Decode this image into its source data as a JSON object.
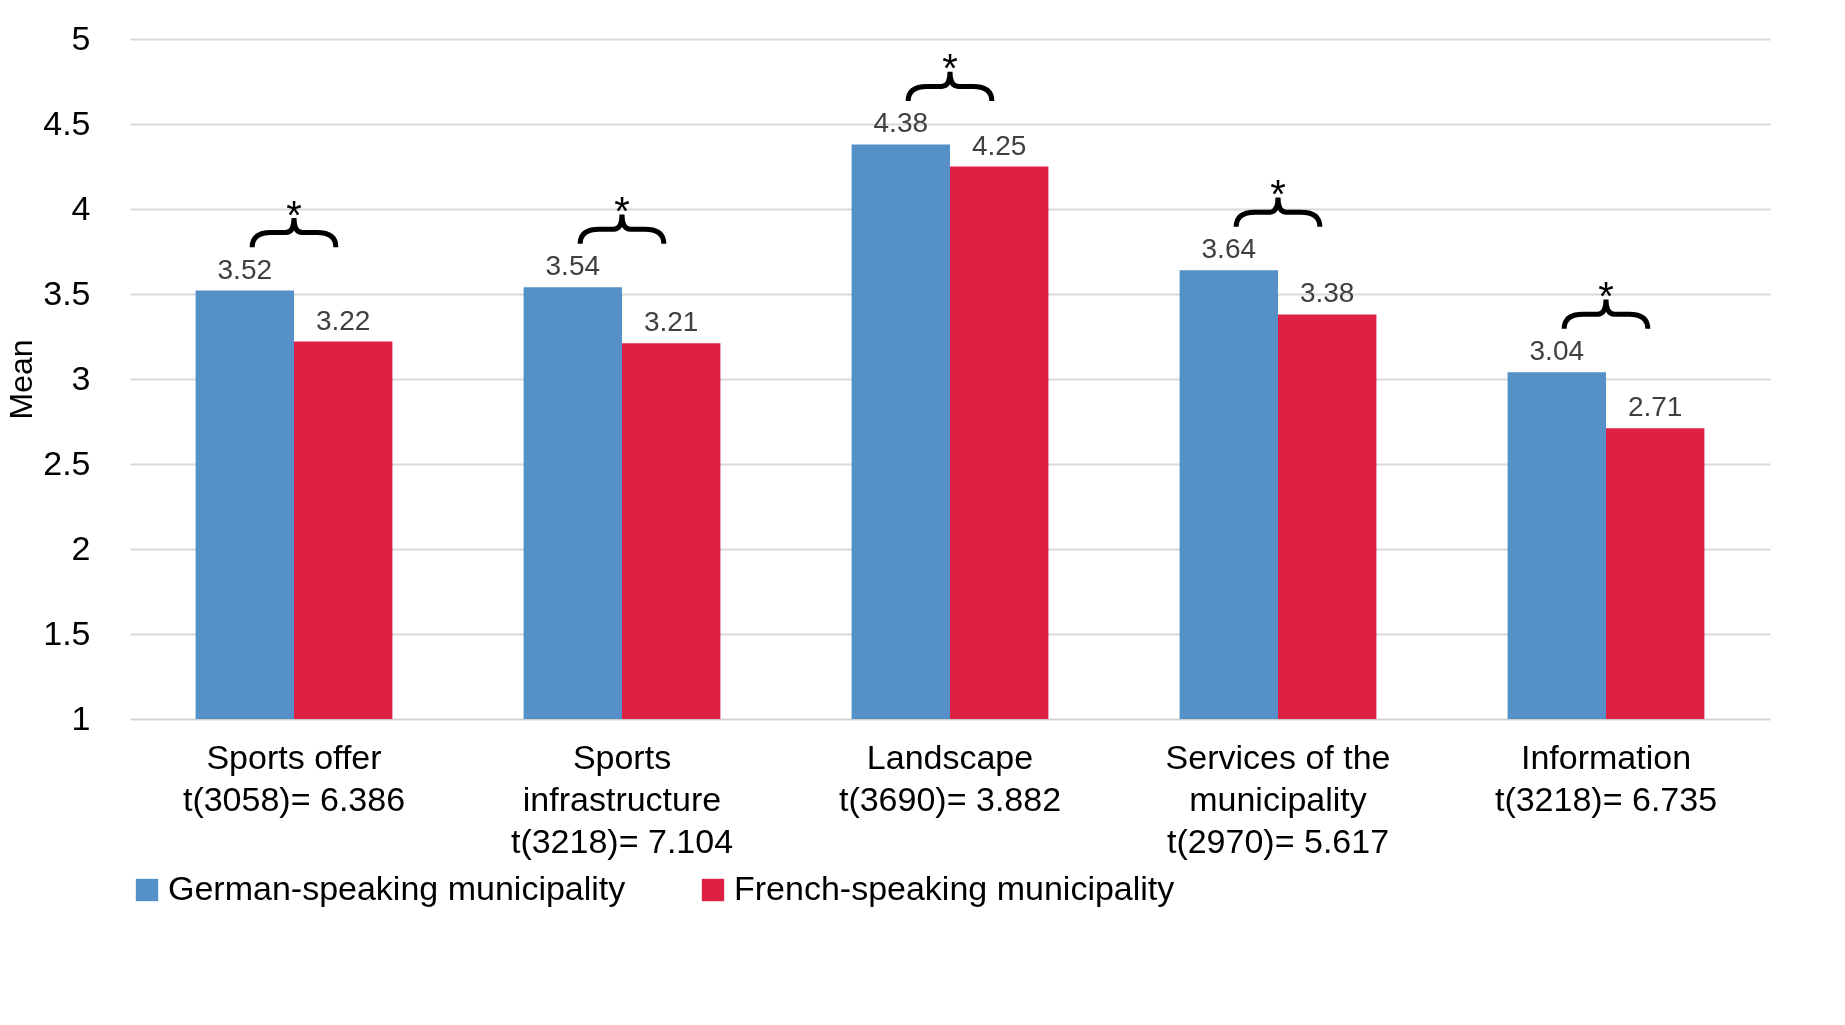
{
  "chart_data": {
    "type": "bar",
    "ylabel": "Mean",
    "categories": [
      "Sports offer\nt(3058)= 6.386",
      "Sports\ninfrastructure\nt(3218)= 7.104",
      "Landscape\nt(3690)= 3.882",
      "Services of the\nmunicipality\nt(2970)= 5.617",
      "Information\nt(3218)= 6.735"
    ],
    "series": [
      {
        "name": "German-speaking municipality",
        "color": "#5590c8",
        "values": [
          3.52,
          3.54,
          4.38,
          3.64,
          3.04
        ]
      },
      {
        "name": "French-speaking municipality",
        "color": "#de2045",
        "values": [
          3.22,
          3.21,
          4.25,
          3.38,
          2.71
        ]
      }
    ],
    "ylim": [
      1,
      5
    ],
    "yticks": [
      1,
      1.5,
      2,
      2.5,
      3,
      3.5,
      4,
      4.5,
      5
    ],
    "grid": "y",
    "legend": "bottom",
    "data_labels": true,
    "annotations": [
      "*",
      "*",
      "*",
      "*",
      "*"
    ]
  }
}
